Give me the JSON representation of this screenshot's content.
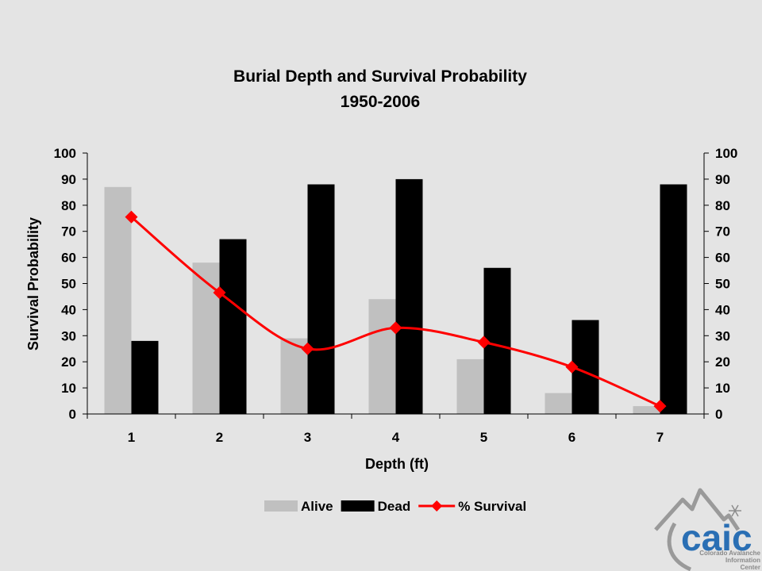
{
  "chart_data": {
    "type": "bar",
    "title": "Burial Depth and Survival Probability",
    "subtitle": "1950-2006",
    "xlabel": "Depth (ft)",
    "ylabel": "Survival Probability",
    "categories": [
      "1",
      "2",
      "3",
      "4",
      "5",
      "6",
      "7"
    ],
    "ylim": [
      0,
      100
    ],
    "y2lim": [
      0,
      100
    ],
    "yticks": [
      0,
      10,
      20,
      30,
      40,
      50,
      60,
      70,
      80,
      90,
      100
    ],
    "grid": false,
    "legend_position": "bottom",
    "series": [
      {
        "name": "Alive",
        "type": "bar",
        "color": "#c0c0c0",
        "values": [
          87,
          58,
          29,
          44,
          21,
          8,
          3
        ]
      },
      {
        "name": "Dead",
        "type": "bar",
        "color": "#000000",
        "values": [
          28,
          67,
          88,
          90,
          56,
          36,
          88
        ]
      },
      {
        "name": "% Survival",
        "type": "line",
        "color": "#ff0000",
        "marker": "diamond",
        "values": [
          75.5,
          46.5,
          25,
          33,
          27.5,
          18,
          3
        ]
      }
    ]
  },
  "logo": {
    "text": "caic",
    "subtext": [
      "Colorado Avalanche",
      "Information",
      "Center"
    ],
    "icon": "snowflake-icon",
    "color": "#2a6fb4"
  }
}
